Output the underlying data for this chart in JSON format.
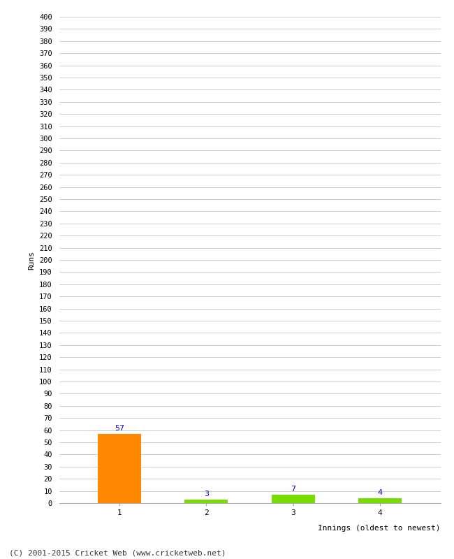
{
  "categories": [
    "1",
    "2",
    "3",
    "4"
  ],
  "values": [
    57,
    3,
    7,
    4
  ],
  "bar_colors": [
    "#ff8800",
    "#77dd00",
    "#77dd00",
    "#77dd00"
  ],
  "ylabel": "Runs",
  "xlabel": "Innings (oldest to newest)",
  "ylim": [
    0,
    400
  ],
  "yticks": [
    0,
    10,
    20,
    30,
    40,
    50,
    60,
    70,
    80,
    90,
    100,
    110,
    120,
    130,
    140,
    150,
    160,
    170,
    180,
    190,
    200,
    210,
    220,
    230,
    240,
    250,
    260,
    270,
    280,
    290,
    300,
    310,
    320,
    330,
    340,
    350,
    360,
    370,
    380,
    390,
    400
  ],
  "label_color": "#0000cc",
  "background_color": "#ffffff",
  "grid_color": "#cccccc",
  "footer": "(C) 2001-2015 Cricket Web (www.cricketweb.net)",
  "bar_width": 0.5
}
